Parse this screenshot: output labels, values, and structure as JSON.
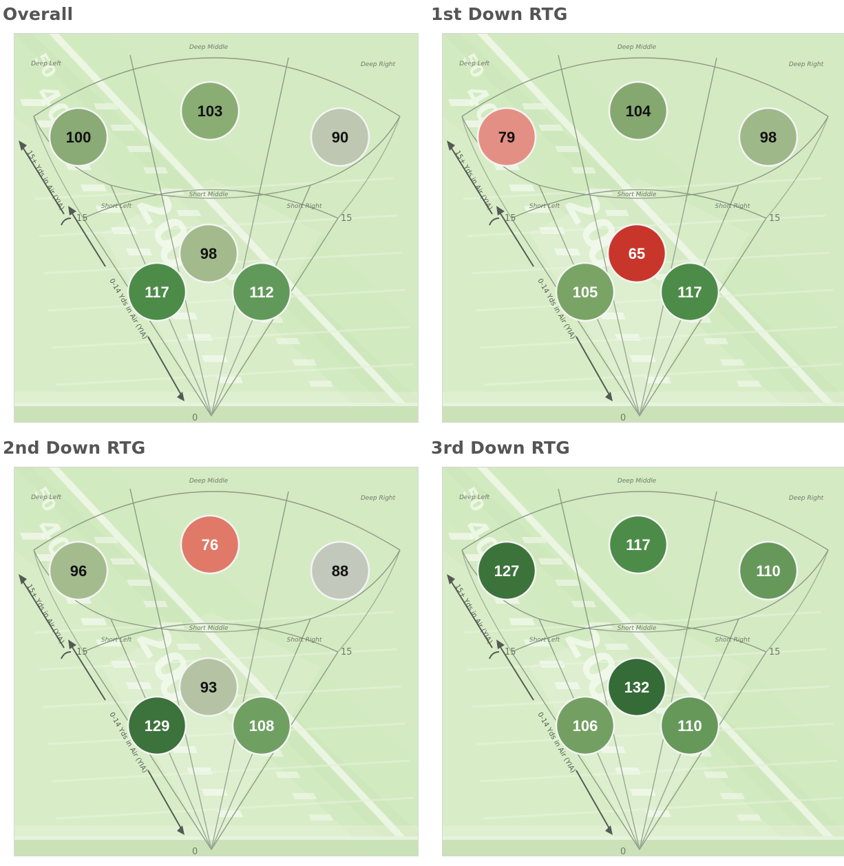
{
  "labels": {
    "zones": {
      "deep_left": "Deep Left",
      "deep_middle": "Deep Middle",
      "deep_right": "Deep Right",
      "short_left": "Short Left",
      "short_middle": "Short Middle",
      "short_right": "Short Right"
    },
    "deep_axis": "15+ Yds in Air (YIA)",
    "short_axis": "0-14 Yds in Air (YIA)",
    "marker_15": "15",
    "marker_0": "0"
  },
  "chart_data": [
    {
      "type": "heatmap",
      "title": "Overall",
      "categories": [
        "Deep Left",
        "Deep Middle",
        "Deep Right",
        "Short Left",
        "Short Middle",
        "Short Right"
      ],
      "values": [
        100,
        103,
        90,
        117,
        98,
        112
      ],
      "colors": [
        "#8aaa76",
        "#8aad74",
        "#bdc7b1",
        "#4c8c48",
        "#a3ba8c",
        "#61995a"
      ]
    },
    {
      "type": "heatmap",
      "title": "1st Down RTG",
      "categories": [
        "Deep Left",
        "Deep Middle",
        "Deep Right",
        "Short Left",
        "Short Middle",
        "Short Right"
      ],
      "values": [
        79,
        104,
        98,
        105,
        65,
        117
      ],
      "colors": [
        "#e48f84",
        "#85a870",
        "#9fb88a",
        "#79a466",
        "#c8362b",
        "#4c8c48"
      ]
    },
    {
      "type": "heatmap",
      "title": "2nd Down RTG",
      "categories": [
        "Deep Left",
        "Deep Middle",
        "Deep Right",
        "Short Left",
        "Short Middle",
        "Short Right"
      ],
      "values": [
        96,
        76,
        88,
        129,
        93,
        108
      ],
      "colors": [
        "#a4bb8e",
        "#e07968",
        "#c3c8bd",
        "#3c723b",
        "#b5c3a4",
        "#6fa062"
      ]
    },
    {
      "type": "heatmap",
      "title": "3rd Down RTG",
      "categories": [
        "Deep Left",
        "Deep Middle",
        "Deep Right",
        "Short Left",
        "Short Middle",
        "Short Right"
      ],
      "values": [
        127,
        117,
        110,
        106,
        132,
        110
      ],
      "colors": [
        "#3c733b",
        "#4c8c48",
        "#66985a",
        "#73a062",
        "#356b36",
        "#66985a"
      ]
    }
  ]
}
